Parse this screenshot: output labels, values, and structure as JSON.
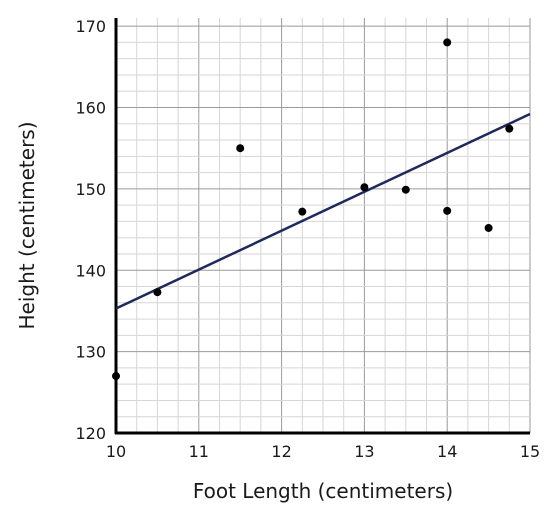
{
  "chart_data": {
    "type": "scatter",
    "title": "",
    "xlabel": "Foot Length (centimeters)",
    "ylabel": "Height (centimeters)",
    "xlim": [
      10,
      15
    ],
    "ylim": [
      120,
      171
    ],
    "x_ticks": [
      "10",
      "11",
      "12",
      "13",
      "14",
      "15"
    ],
    "y_ticks": [
      "120",
      "130",
      "140",
      "150",
      "160",
      "170"
    ],
    "grid": true,
    "grid_minor_step": [
      0.25,
      2
    ],
    "series": [
      {
        "points": [
          {
            "x": 10,
            "y": 127
          },
          {
            "x": 10.5,
            "y": 137.3
          },
          {
            "x": 11.5,
            "y": 155
          },
          {
            "x": 12.25,
            "y": 147.2
          },
          {
            "x": 13,
            "y": 150.2
          },
          {
            "x": 13.5,
            "y": 149.9
          },
          {
            "x": 14,
            "y": 168
          },
          {
            "x": 14,
            "y": 147.3
          },
          {
            "x": 14.5,
            "y": 145.2
          },
          {
            "x": 14.75,
            "y": 157.4
          }
        ],
        "color": "#000000"
      }
    ],
    "trend_line": {
      "from": {
        "x": 10,
        "y": 135.3
      },
      "to": {
        "x": 15,
        "y": 159.2
      },
      "color": "#1f2a5c"
    },
    "colors": {
      "grid_minor": "#d6d6d6",
      "grid_major": "#9a9a9a",
      "axis": "#000000"
    }
  }
}
